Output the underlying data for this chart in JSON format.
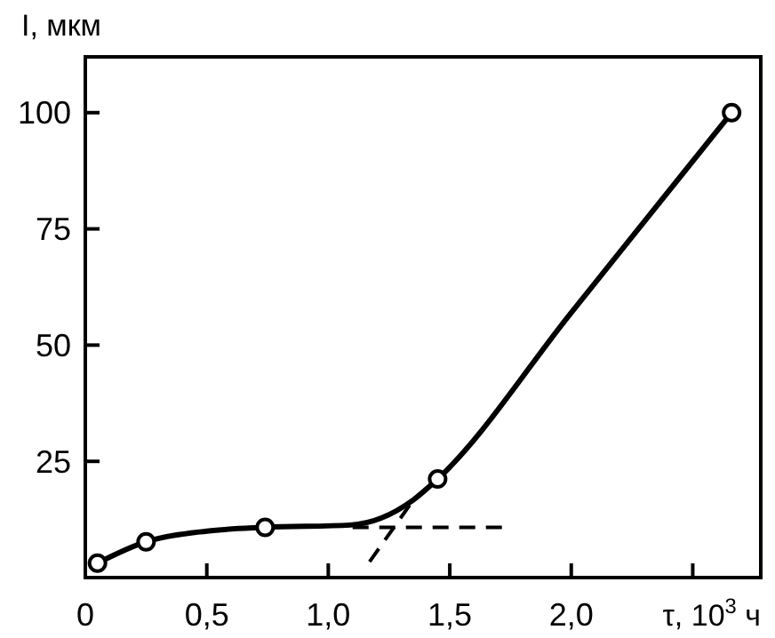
{
  "chart_data": {
    "type": "line",
    "xlabel": "τ, 10$^{3}$ ч",
    "ylabel": "I, мкм",
    "xlim": [
      0,
      2.78
    ],
    "ylim": [
      0,
      112
    ],
    "xticks": [
      {
        "value": 0,
        "label": "0"
      },
      {
        "value": 0.5,
        "label": "0,5"
      },
      {
        "value": 1,
        "label": "1,0"
      },
      {
        "value": 1.5,
        "label": "1,5"
      },
      {
        "value": 2,
        "label": "2,0"
      },
      {
        "value": 2.5,
        "label": null
      }
    ],
    "yticks": [
      25,
      50,
      75,
      100
    ],
    "grid": false,
    "series": [
      {
        "color": "#000000",
        "marker": "none",
        "line_style": "solid",
        "x": [
          0.05,
          0.25,
          0.5,
          0.74,
          1.09,
          1.35,
          1.45,
          2.0,
          2.66
        ],
        "values": [
          3.1,
          7.7,
          10,
          10.8,
          11.3,
          16.7,
          21.2,
          57,
          100
        ]
      },
      {
        "type": "scatter",
        "color": "#000000",
        "marker": "circle",
        "x": [
          0.05,
          0.25,
          0.74,
          1.45,
          2.66
        ],
        "values": [
          3.1,
          7.7,
          10.8,
          21.2,
          100
        ]
      },
      {
        "type": "line",
        "color": "#000000",
        "marker": "none",
        "line_style": "dashed",
        "x": [
          1.1,
          1.74
        ],
        "values": [
          10.8,
          10.8
        ]
      },
      {
        "type": "line",
        "color": "#000000",
        "marker": "none",
        "line_style": "dashed",
        "x": [
          1.17,
          1.35
        ],
        "values": [
          3.4,
          16.7
        ]
      }
    ]
  }
}
